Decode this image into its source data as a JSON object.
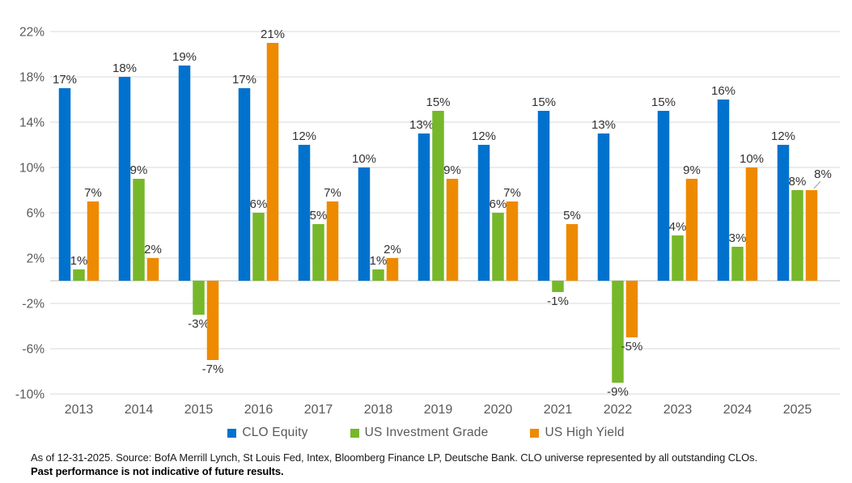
{
  "chart_data": {
    "type": "bar",
    "title": "",
    "categories": [
      "2013",
      "2014",
      "2015",
      "2016",
      "2017",
      "2018",
      "2019",
      "2020",
      "2021",
      "2022",
      "2023",
      "2024",
      "2025"
    ],
    "series": [
      {
        "name": "CLO Equity",
        "color": "#0072CE",
        "values": [
          17,
          18,
          19,
          17,
          12,
          10,
          13,
          12,
          15,
          13,
          15,
          16,
          12
        ]
      },
      {
        "name": "US Investment Grade",
        "color": "#76B82A",
        "values": [
          1,
          9,
          -3,
          6,
          5,
          1,
          15,
          6,
          -1,
          -9,
          4,
          3,
          8
        ]
      },
      {
        "name": "US High Yield",
        "color": "#EE8A00",
        "values": [
          7,
          2,
          -7,
          21,
          7,
          2,
          9,
          7,
          5,
          -5,
          9,
          10,
          8
        ]
      }
    ],
    "value_suffix": "%",
    "xlabel": "",
    "ylabel": "",
    "y_axis": {
      "min": -10,
      "max": 22,
      "tick_values": [
        22,
        18,
        14,
        10,
        6,
        2,
        -2,
        -6,
        -10
      ],
      "tick_labels": [
        "22%",
        "18%",
        "14%",
        "10%",
        "6%",
        "2%",
        "-2%",
        "-6%",
        "-10%"
      ],
      "grid": true
    },
    "legend": {
      "position": "bottom",
      "entries": [
        "CLO Equity",
        "US Investment Grade",
        "US High Yield"
      ]
    }
  },
  "colors": {
    "clo_equity": "#0072CE",
    "us_investment_grade": "#76B82A",
    "us_high_yield": "#EE8A00",
    "gridline": "#D9D9D9",
    "zero_line": "#C9C9C9",
    "axis_text": "#595959",
    "data_label": "#333333",
    "leader_line": "#A0A0A0"
  },
  "footer": {
    "line1": "As of 12-31-2025. Source: BofA Merrill Lynch, St Louis Fed, Intex, Bloomberg Finance LP, Deutsche Bank. CLO universe represented by all outstanding CLOs.",
    "line2": "Past performance is not indicative of future results."
  }
}
